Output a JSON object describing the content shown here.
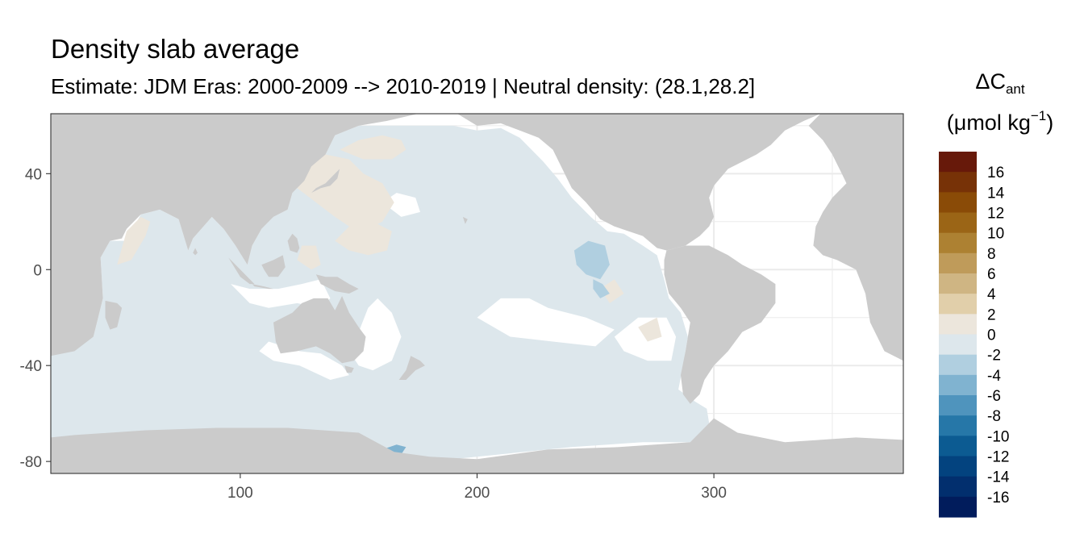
{
  "chart_data": {
    "type": "heatmap",
    "title": "Density slab average",
    "subtitle": "Estimate: JDM Eras: 2000-2009 --> 2010-2019 | Neutral density: (28.1,28.2]",
    "xlabel": "",
    "ylabel": "",
    "xlim": [
      20,
      380
    ],
    "ylim": [
      -85,
      65
    ],
    "x_ticks": [
      100,
      200,
      300
    ],
    "y_ticks": [
      40,
      0,
      -40,
      -80
    ],
    "grid": true,
    "legend": {
      "title_main": "ΔC",
      "title_sub": "ant",
      "unit_main": "(μmol kg",
      "unit_sup": "−1",
      "unit_close": ")",
      "placement": "right",
      "breaks": [
        18,
        16,
        14,
        12,
        10,
        8,
        6,
        4,
        2,
        0,
        -2,
        -4,
        -6,
        -8,
        -10,
        -12,
        -14,
        -16,
        -18
      ],
      "labels": [
        "16",
        "14",
        "12",
        "10",
        "8",
        "6",
        "4",
        "2",
        "0",
        "-2",
        "-4",
        "-6",
        "-8",
        "-10",
        "-12",
        "-14",
        "-16"
      ],
      "colors": [
        "#67190a",
        "#773207",
        "#8a4b07",
        "#9b6516",
        "#ad8132",
        "#bf9b5a",
        "#cfb583",
        "#e1cfaa",
        "#ece6dc",
        "#dde7ec",
        "#b0cfe0",
        "#80b3d0",
        "#4f94bd",
        "#2677a8",
        "#0c5b92",
        "#03437f",
        "#022f6e",
        "#011c5c"
      ]
    },
    "colors": {
      "land": "#cbcbcb",
      "ocean_no_data": "#ffffff",
      "ocean_main": "#dde7ec",
      "ocean_positive": "#ece6dc",
      "ocean_negative": "#b0cfe0",
      "ocean_strong_negative": "#80b3d0",
      "grid": "#ebebeb",
      "axis": "#333333"
    },
    "regions": [
      {
        "category": "0 to -2",
        "description": "Pacific, Indian and Southern Ocean basins"
      },
      {
        "category": "0 to 2",
        "description": "western North Pacific, Kuroshio region, Arabian Sea"
      },
      {
        "category": "-2 to -4",
        "description": "eastern tropical Pacific off Central America"
      },
      {
        "category": "-4 to -6",
        "description": "Ross Sea margin"
      }
    ]
  }
}
